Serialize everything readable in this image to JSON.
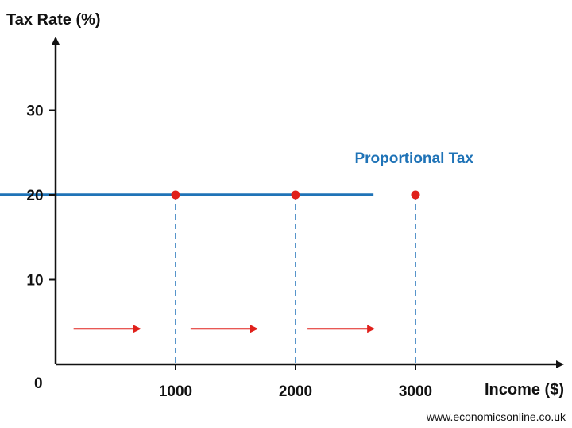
{
  "colors": {
    "axis": "#111111",
    "series_line": "#1f73b7",
    "guide_line": "#2e7bbd",
    "point": "#e0201b",
    "arrow": "#e0201b",
    "background": "#ffffff"
  },
  "chart_data": {
    "type": "line",
    "title": "",
    "xlabel": "Income ($)",
    "ylabel": "Tax Rate (%)",
    "origin_label": "0",
    "xlim": [
      0,
      3700
    ],
    "ylim": [
      0,
      38
    ],
    "x_ticks": [
      1000,
      2000,
      3000
    ],
    "x_tick_labels": [
      "1000",
      "2000",
      "3000"
    ],
    "y_ticks": [
      10,
      20,
      30
    ],
    "y_tick_labels": [
      "10",
      "20",
      "30"
    ],
    "grid": false,
    "series": [
      {
        "name": "Proportional Tax",
        "x": [
          -830,
          2650
        ],
        "y": [
          20,
          20
        ]
      }
    ],
    "points": {
      "x": [
        1000,
        2000,
        3000
      ],
      "y": [
        20,
        20,
        20
      ]
    },
    "arrows": [
      {
        "from": 150,
        "to": 700,
        "y": 4.2
      },
      {
        "from": 1125,
        "to": 1675,
        "y": 4.2
      },
      {
        "from": 2100,
        "to": 2650,
        "y": 4.2
      }
    ]
  },
  "footer": {
    "credit": "www.economicsonline.co.uk"
  }
}
